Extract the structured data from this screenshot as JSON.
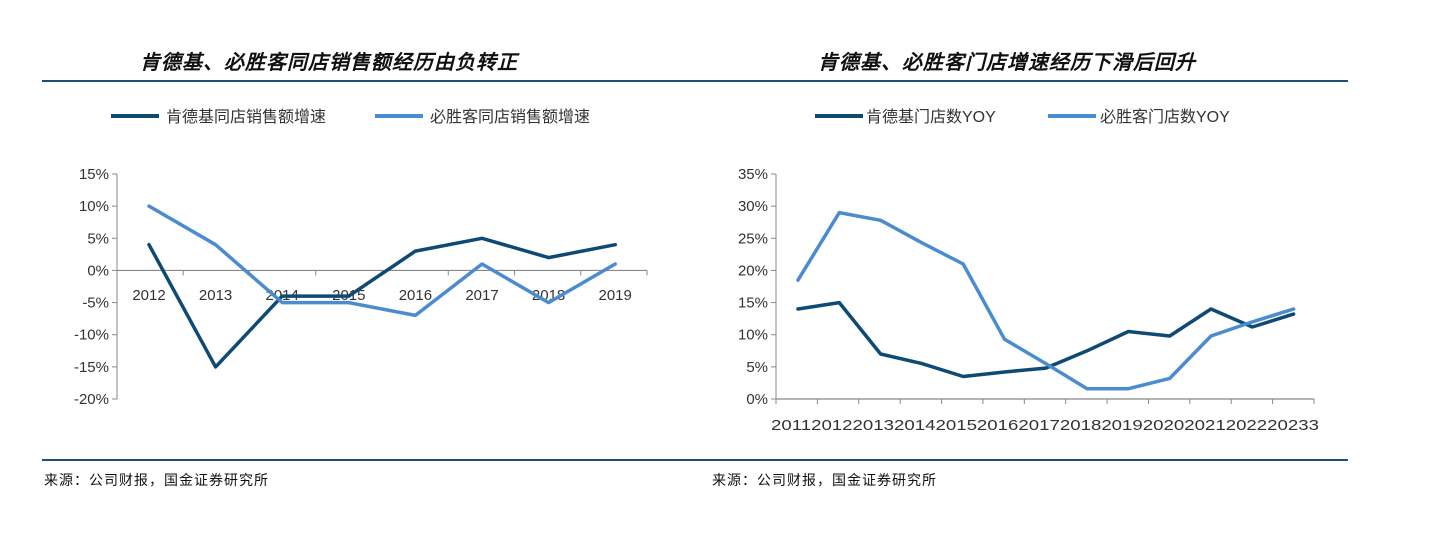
{
  "charts": [
    {
      "title": "肯德基、必胜客同店销售额经历由负转正",
      "source": "来源：公司财报，国金证券研究所"
    },
    {
      "title": "肯德基、必胜客门店增速经历下滑后回升",
      "source": "来源：公司财报，国金证券研究所"
    }
  ],
  "colors": {
    "dark": "#0e4a73",
    "light": "#4a8ccf",
    "axis": "#888888",
    "rule": "#1f4e79"
  },
  "chart_data": [
    {
      "type": "line",
      "title": "肯德基、必胜客同店销售额经历由负转正",
      "categories": [
        "2012",
        "2013",
        "2014",
        "2015",
        "2016",
        "2017",
        "2018",
        "2019"
      ],
      "series": [
        {
          "name": "肯德基同店销售额增速",
          "color": "#0e4a73",
          "values": [
            4,
            -15,
            -4,
            -4,
            3,
            5,
            2,
            4
          ]
        },
        {
          "name": "必胜客同店销售额增速",
          "color": "#4a8ccf",
          "values": [
            10,
            4,
            -5,
            -5,
            -7,
            1,
            -5,
            1
          ]
        }
      ],
      "yticks": [
        "15%",
        "10%",
        "5%",
        "0%",
        "-5%",
        "-10%",
        "-15%",
        "-20%"
      ],
      "ylim": [
        -20,
        15
      ],
      "legend": "top"
    },
    {
      "type": "line",
      "title": "肯德基、必胜客门店增速经历下滑后回升",
      "categories": [
        "2011",
        "2012",
        "2013",
        "2014",
        "2015",
        "2016",
        "2017",
        "2018",
        "2019",
        "2020",
        "2021",
        "2022",
        "2023"
      ],
      "xtick_text": "20112012201320142015201620172018201920202021202220233",
      "series": [
        {
          "name": "肯德基门店数YOY",
          "color": "#0e4a73",
          "values": [
            14,
            15,
            7,
            5.5,
            3.5,
            4.2,
            4.8,
            7.5,
            10.5,
            9.8,
            14,
            11.2,
            13.2
          ]
        },
        {
          "name": "必胜客门店数YOY",
          "color": "#4a8ccf",
          "values": [
            18.5,
            29,
            27.8,
            24.3,
            21,
            9.3,
            5.5,
            1.6,
            1.6,
            3.2,
            9.8,
            12,
            14
          ]
        }
      ],
      "yticks": [
        "35%",
        "30%",
        "25%",
        "20%",
        "15%",
        "10%",
        "5%",
        "0%"
      ],
      "ylim": [
        0,
        35
      ],
      "legend": "top"
    }
  ]
}
